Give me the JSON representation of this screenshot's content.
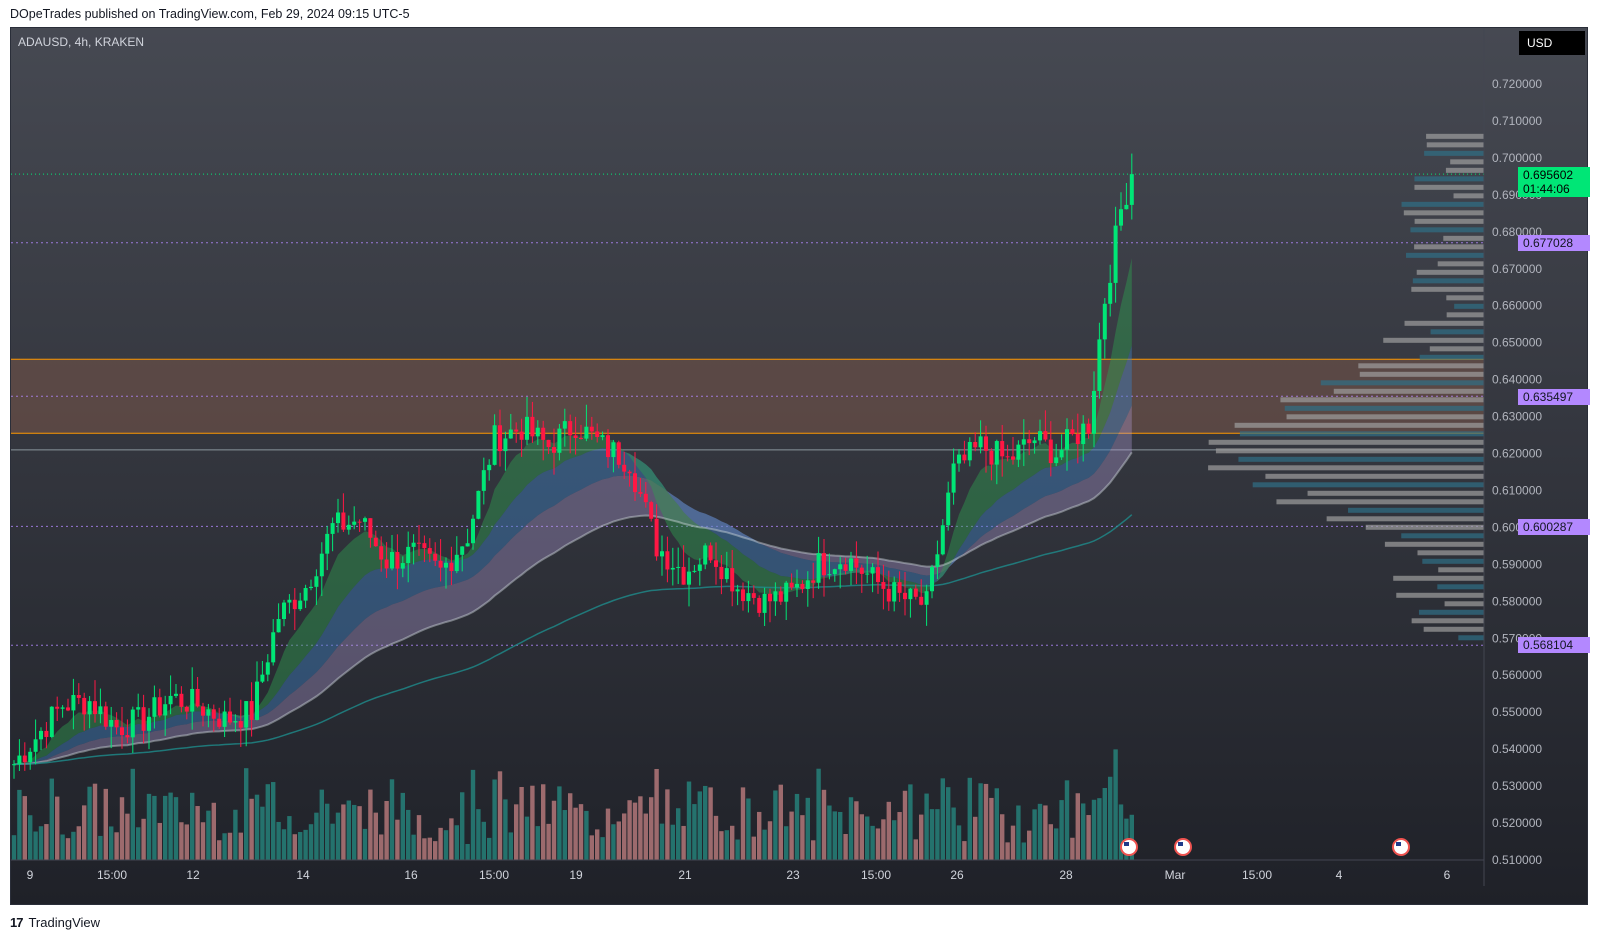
{
  "header": {
    "published": "DOpeTrades published on TradingView.com, Feb 29, 2024 09:15 UTC-5"
  },
  "footer": {
    "brand": "TradingView"
  },
  "chart": {
    "symbol": "ADAUSD, 4h, KRAKEN",
    "currency": "USD",
    "last_price": "0.695602",
    "countdown": "01:44:06",
    "levels": [
      "0.677028",
      "0.635497",
      "0.600287",
      "0.568104"
    ],
    "price_ticks": [
      "0.720000",
      "0.710000",
      "0.700000",
      "0.690000",
      "0.680000",
      "0.670000",
      "0.660000",
      "0.650000",
      "0.640000",
      "0.630000",
      "0.620000",
      "0.610000",
      "0.600000",
      "0.590000",
      "0.580000",
      "0.570000",
      "0.560000",
      "0.550000",
      "0.540000",
      "0.530000",
      "0.520000",
      "0.510000"
    ],
    "time_ticks": [
      "9",
      "15:00",
      "12",
      "14",
      "16",
      "15:00",
      "19",
      "21",
      "23",
      "15:00",
      "26",
      "28",
      "Mar",
      "15:00",
      "4",
      "6"
    ]
  },
  "colors": {
    "bull": "#00e676",
    "bear": "#ff1744",
    "vol_bull": "#26a69a",
    "vol_bear": "#ef9a9a",
    "zone": "#795548",
    "zone_line": "#ff9800",
    "level": "#b388ff"
  },
  "chart_data": {
    "type": "candlestick",
    "title": "ADAUSD, 4h, KRAKEN",
    "ylim": [
      0.51,
      0.725
    ],
    "last_price": 0.695602,
    "resistance_zone": [
      0.6255,
      0.6455
    ],
    "support_line": 0.621,
    "levels": [
      0.677028,
      0.635497,
      0.600287,
      0.568104
    ],
    "anchors": [
      [
        0,
        0.536
      ],
      [
        9,
        0.552
      ],
      [
        14,
        0.553
      ],
      [
        19,
        0.546
      ],
      [
        24,
        0.548
      ],
      [
        29,
        0.554
      ],
      [
        34,
        0.552
      ],
      [
        39,
        0.548
      ],
      [
        44,
        0.55
      ],
      [
        49,
        0.576
      ],
      [
        54,
        0.584
      ],
      [
        59,
        0.6
      ],
      [
        64,
        0.602
      ],
      [
        69,
        0.591
      ],
      [
        74,
        0.593
      ],
      [
        79,
        0.588
      ],
      [
        84,
        0.598
      ],
      [
        89,
        0.624
      ],
      [
        94,
        0.627
      ],
      [
        99,
        0.622
      ],
      [
        104,
        0.628
      ],
      [
        109,
        0.622
      ],
      [
        114,
        0.618
      ],
      [
        119,
        0.595
      ],
      [
        124,
        0.588
      ],
      [
        129,
        0.594
      ],
      [
        134,
        0.584
      ],
      [
        139,
        0.58
      ],
      [
        144,
        0.582
      ],
      [
        149,
        0.59
      ],
      [
        154,
        0.592
      ],
      [
        159,
        0.586
      ],
      [
        164,
        0.581
      ],
      [
        169,
        0.579
      ],
      [
        174,
        0.615
      ],
      [
        179,
        0.622
      ],
      [
        184,
        0.618
      ],
      [
        189,
        0.624
      ],
      [
        193,
        0.62
      ],
      [
        196,
        0.624
      ],
      [
        199,
        0.628
      ],
      [
        202,
        0.662
      ],
      [
        205,
        0.686
      ],
      [
        207,
        0.696
      ]
    ],
    "n_candles": 208,
    "volume_profile_note": "horizontal volume histogram on right side"
  }
}
